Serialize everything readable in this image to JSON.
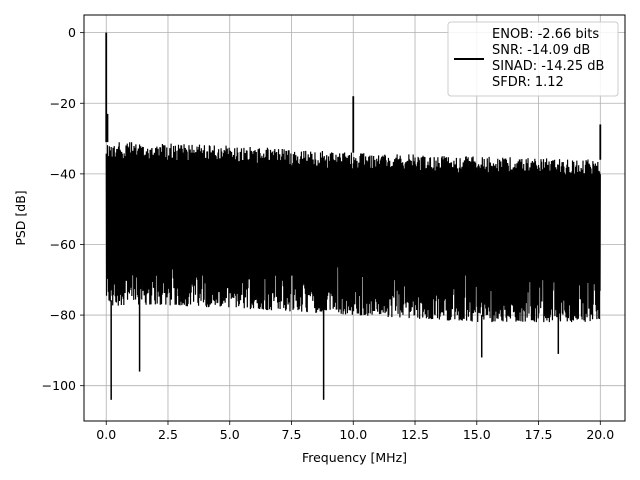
{
  "chart_data": {
    "type": "line",
    "xlabel": "Frequency [MHz]",
    "ylabel": "PSD [dB]",
    "xlim": [
      -0.9,
      21.0
    ],
    "ylim": [
      -110,
      5
    ],
    "xticks": [
      0.0,
      2.5,
      5.0,
      7.5,
      10.0,
      12.5,
      15.0,
      17.5,
      20.0
    ],
    "xtick_labels": [
      "0.0",
      "2.5",
      "5.0",
      "7.5",
      "10.0",
      "12.5",
      "15.0",
      "17.5",
      "20.0"
    ],
    "yticks": [
      0,
      -20,
      -40,
      -60,
      -80,
      -100
    ],
    "ytick_labels": [
      "0",
      "−20",
      "−40",
      "−60",
      "−80",
      "−100"
    ],
    "grid": true,
    "legend_position": "top-right",
    "series": [
      {
        "color": "#000000",
        "description": "noisy PSD spectrum",
        "upper_envelope": {
          "x": [
            0.0,
            1.0,
            5.0,
            10.0,
            15.0,
            20.0
          ],
          "y": [
            -31,
            -31,
            -32,
            -34,
            -35,
            -36
          ]
        },
        "lower_envelope": {
          "x": [
            0.0,
            1.0,
            5.0,
            10.0,
            15.0,
            20.0
          ],
          "y": [
            -76,
            -75,
            -76,
            -78,
            -80,
            -80
          ]
        },
        "peaks": [
          {
            "x": 0.0,
            "y": 0
          },
          {
            "x": 0.05,
            "y": -23
          },
          {
            "x": 10.0,
            "y": -18
          },
          {
            "x": 20.0,
            "y": -26
          }
        ],
        "dips": [
          {
            "x": 0.2,
            "y": -104
          },
          {
            "x": 1.35,
            "y": -96
          },
          {
            "x": 8.8,
            "y": -104
          },
          {
            "x": 15.2,
            "y": -92
          },
          {
            "x": 18.3,
            "y": -91
          }
        ]
      }
    ],
    "legend": {
      "lines": [
        "ENOB: -2.66 bits",
        "SNR: -14.09 dB",
        "SINAD: -14.25 dB",
        "SFDR: 1.12"
      ]
    }
  }
}
